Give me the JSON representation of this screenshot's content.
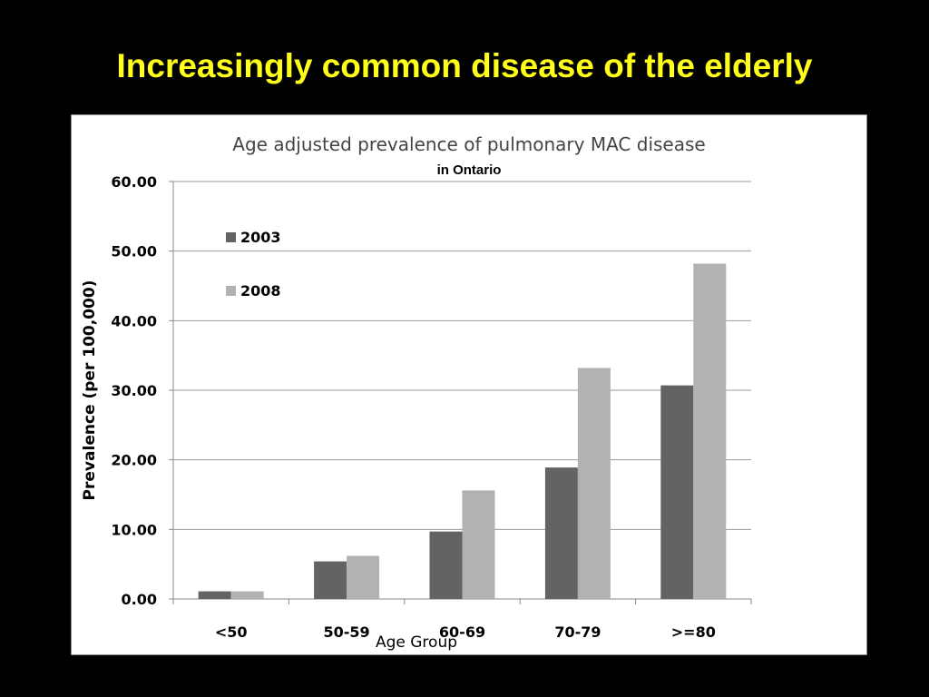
{
  "slide": {
    "title": "Increasingly common disease of the elderly",
    "title_color": "#ffff1a",
    "background": "#000000"
  },
  "chart_data": {
    "type": "bar",
    "title": "Age adjusted prevalence of pulmonary MAC disease",
    "subtitle": "in Ontario",
    "xlabel": "Age Group",
    "ylabel": "Prevalence (per 100,000)",
    "categories": [
      "<50",
      "50-59",
      "60-69",
      "70-79",
      ">=80"
    ],
    "series": [
      {
        "name": "2003",
        "color": "#636363",
        "values": [
          1.1,
          5.4,
          9.7,
          18.9,
          30.7
        ]
      },
      {
        "name": "2008",
        "color": "#b2b2b2",
        "values": [
          1.1,
          6.2,
          15.6,
          33.2,
          48.2
        ]
      }
    ],
    "ylim": [
      0,
      60
    ],
    "yticks": [
      "0.00",
      "10.00",
      "20.00",
      "30.00",
      "40.00",
      "50.00",
      "60.00"
    ],
    "grid": true,
    "legend_position": "top-left"
  }
}
